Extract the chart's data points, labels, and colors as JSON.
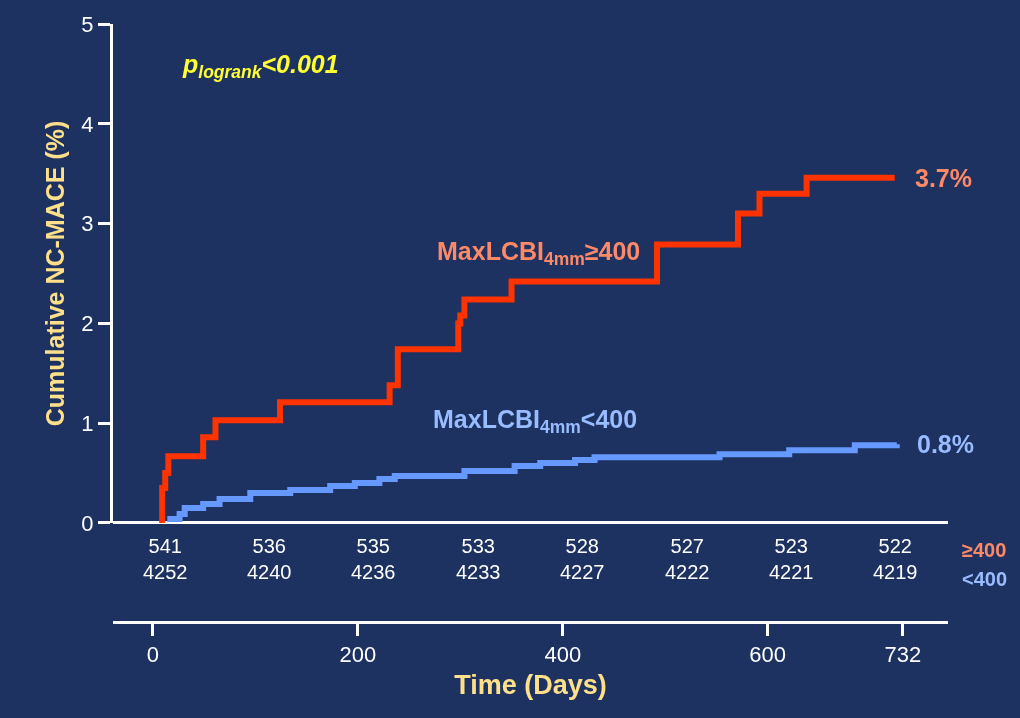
{
  "chart_data": {
    "type": "step",
    "xlabel": "Time (Days)",
    "ylabel": "Cumulative NC-MACE (%)",
    "xlim": [
      -39,
      776
    ],
    "xticks": [
      0,
      200,
      400,
      600,
      732
    ],
    "ylim": [
      0,
      5
    ],
    "yticks": [
      0,
      1,
      2,
      3,
      4,
      5
    ],
    "grid": false,
    "legend": false,
    "marker": "none",
    "line_style": "solid",
    "series": [
      {
        "name": "MaxLCBI$_{4mm}$≥400",
        "color": "#ff3300",
        "x": [
          9,
          9,
          12,
          15,
          49,
          61,
          124,
          231,
          239,
          298,
          300,
          304,
          350,
          492,
          571,
          592,
          638,
          724
        ],
        "values": [
          0,
          0.35,
          0.5,
          0.67,
          0.86,
          1.03,
          1.21,
          1.38,
          1.74,
          2.0,
          2.08,
          2.24,
          2.42,
          2.79,
          3.1,
          3.3,
          3.46,
          3.46
        ]
      },
      {
        "name": "MaxLCBI$_{4mm}$<400",
        "color": "#6699ff",
        "x": [
          14,
          26,
          31,
          49,
          65,
          95,
          134,
          173,
          197,
          221,
          236,
          304,
          353,
          378,
          412,
          431,
          553,
          621,
          685,
          726
        ],
        "values": [
          0.04,
          0.09,
          0.15,
          0.19,
          0.24,
          0.3,
          0.33,
          0.37,
          0.4,
          0.44,
          0.47,
          0.52,
          0.57,
          0.6,
          0.63,
          0.66,
          0.69,
          0.73,
          0.78,
          0.79
        ]
      }
    ],
    "annotations": [
      "p$_{logrank}$<0.001",
      "3.7%",
      "0.8%",
      "541\n4252",
      "536\n4240",
      "535\n4236",
      "533\n4233",
      "528\n4227",
      "527\n4222",
      "523\n4221",
      "522\n4219",
      "≥400",
      "<400"
    ]
  }
}
